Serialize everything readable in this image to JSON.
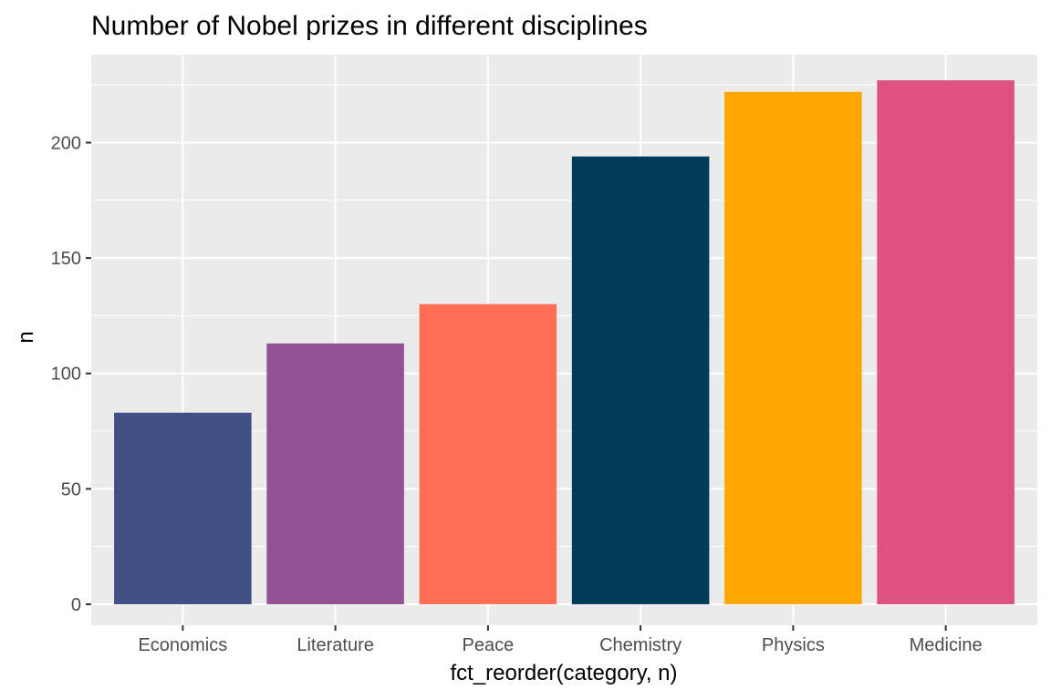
{
  "chart_data": {
    "type": "bar",
    "title": "Number of Nobel prizes in different disciplines",
    "xlabel": "fct_reorder(category, n)",
    "ylabel": "n",
    "categories": [
      "Economics",
      "Literature",
      "Peace",
      "Chemistry",
      "Physics",
      "Medicine"
    ],
    "values": [
      83,
      113,
      130,
      194,
      222,
      227
    ],
    "colors": [
      "#424f84",
      "#935295",
      "#ff6e55",
      "#003c59",
      "#ffa600",
      "#de5281"
    ],
    "ylim": [
      -9.1,
      238.1
    ],
    "yticks": [
      0,
      50,
      100,
      150,
      200
    ],
    "grid": true,
    "legend": "none",
    "panel_background": "#ebebeb",
    "grid_color": "#ffffff"
  }
}
